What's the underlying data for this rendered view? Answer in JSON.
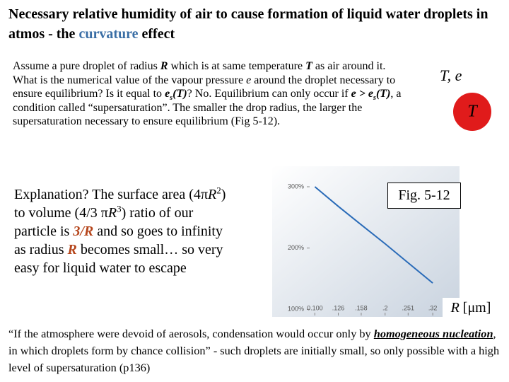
{
  "title": [
    "Necessary relative humidity of air to cause formation of liquid water droplets in atmos - the ",
    "curvature",
    " effect"
  ],
  "intro": [
    "Assume a pure droplet of radius ",
    "R",
    " which is at same temperature ",
    "T",
    " as air around it. What is the numerical value of the vapour pressure ",
    "e",
    " around the droplet necessary to ensure equilibrium? Is it equal to ",
    "e",
    "s",
    "(T)",
    "? No. Equilibrium can only occur if ",
    "e > e",
    "s",
    "(T)",
    ", a condition called “supersaturation”. The smaller the drop radius, the larger the supersaturation necessary to ensure equilibrium (Fig 5-12)."
  ],
  "side_labels": {
    "te": "T, e",
    "circle": "T"
  },
  "explanation": [
    "Explanation? The surface area (4",
    "π",
    "R",
    "2",
    ") to volume (4/3  ",
    "π",
    "R",
    "3",
    ") ratio of our particle is ",
    "3/R",
    " and so goes to infinity as radius ",
    "R",
    " becomes small… so very easy for liquid water to escape"
  ],
  "figure": {
    "caption": "Fig. 5-12",
    "axis_label": [
      "R",
      " [μm]"
    ],
    "x": [
      0.1,
      0.126,
      0.158,
      0.2,
      0.251,
      0.32
    ],
    "values": [
      300,
      268,
      238,
      207,
      176,
      143
    ],
    "color": "#2a6bb8",
    "xlim": [
      0.095,
      0.35
    ],
    "log_x": true,
    "xticks": [
      {
        "value": 0.1,
        "label": "0.100"
      },
      {
        "value": 0.126,
        "label": ".126"
      },
      {
        "value": 0.158,
        "label": ".158"
      },
      {
        "value": 0.2,
        "label": ".2"
      },
      {
        "value": 0.251,
        "label": ".251"
      },
      {
        "value": 0.32,
        "label": ".32"
      }
    ],
    "ylim": [
      90,
      315
    ],
    "yticks": [
      {
        "value": 100,
        "label": "100%"
      },
      {
        "value": 200,
        "label": "200%"
      },
      {
        "value": 300,
        "label": "300%"
      }
    ]
  },
  "quote": [
    "“If the atmosphere were devoid of aerosols, condensation would occur only by ",
    "homogeneous nucleation",
    ", in which droplets form by chance collision” - such droplets are initially small, so only possible with a high level of supersaturation (p136)"
  ]
}
